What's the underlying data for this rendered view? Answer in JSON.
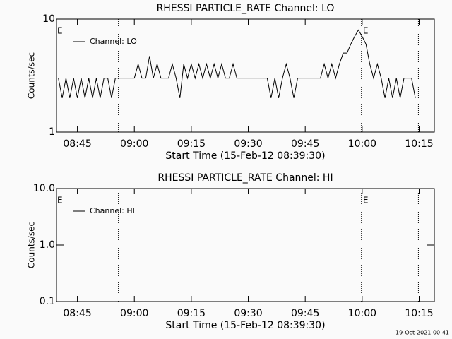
{
  "chart_data": [
    {
      "type": "line",
      "title": "RHESSI PARTICLE_RATE Channel: LO",
      "xlabel": "Start Time (15-Feb-12 08:39:30)",
      "ylabel": "Counts/sec",
      "log_y": true,
      "xlim": [
        519.5,
        619
      ],
      "ylim": [
        1,
        10
      ],
      "xticks": [
        {
          "value": 525,
          "label": "08:45"
        },
        {
          "value": 540,
          "label": "09:00"
        },
        {
          "value": 555,
          "label": "09:15"
        },
        {
          "value": 570,
          "label": "09:30"
        },
        {
          "value": 585,
          "label": "09:45"
        },
        {
          "value": 600,
          "label": "10:00"
        },
        {
          "value": 615,
          "label": "10:15"
        }
      ],
      "yticks": [
        1,
        10
      ],
      "vlines": [
        535.8,
        599.8,
        614.8
      ],
      "annotations": [
        {
          "text": "E",
          "x": 519.5
        },
        {
          "text": "E",
          "x": 600
        }
      ],
      "x": [
        520,
        521,
        522,
        523,
        524,
        525,
        526,
        527,
        528,
        529,
        530,
        531,
        532,
        533,
        534,
        535,
        536,
        537,
        538,
        539,
        540,
        541,
        542,
        543,
        544,
        545,
        546,
        547,
        548,
        549,
        550,
        551,
        552,
        553,
        554,
        555,
        556,
        557,
        558,
        559,
        560,
        561,
        562,
        563,
        564,
        565,
        566,
        567,
        568,
        569,
        570,
        571,
        572,
        573,
        574,
        575,
        576,
        577,
        578,
        579,
        580,
        581,
        582,
        583,
        584,
        585,
        586,
        587,
        588,
        589,
        590,
        591,
        592,
        593,
        594,
        595,
        596,
        597,
        598,
        599,
        600,
        601,
        602,
        603,
        604,
        605,
        606,
        607,
        608,
        609,
        610,
        611,
        612,
        613,
        614
      ],
      "series": [
        {
          "name": "Channel: LO",
          "color": "#000000",
          "values": [
            3,
            2,
            3,
            2,
            3,
            2,
            3,
            2,
            3,
            2,
            3,
            2,
            3,
            3,
            2,
            3,
            3,
            3,
            3,
            3,
            3,
            4,
            3,
            3,
            4.7,
            3,
            4,
            3,
            3,
            3,
            4,
            3,
            2,
            4,
            3,
            4,
            3,
            4,
            3,
            4,
            3,
            4,
            3,
            4,
            3,
            3,
            4,
            3,
            3,
            3,
            3,
            3,
            3,
            3,
            3,
            3,
            2,
            3,
            2,
            3,
            4,
            3,
            2,
            3,
            3,
            3,
            3,
            3,
            3,
            3,
            4,
            3,
            4,
            3,
            4,
            5,
            5,
            6,
            7,
            8,
            7,
            6,
            4,
            3,
            4,
            3,
            2,
            3,
            2,
            3,
            2,
            3,
            3,
            3,
            2
          ]
        }
      ]
    },
    {
      "type": "line",
      "title": "RHESSI PARTICLE_RATE Channel: HI",
      "xlabel": "Start Time (15-Feb-12 08:39:30)",
      "ylabel": "Counts/sec",
      "log_y": true,
      "xlim": [
        519.5,
        619
      ],
      "ylim": [
        0.1,
        10
      ],
      "xticks": [
        {
          "value": 525,
          "label": "08:45"
        },
        {
          "value": 540,
          "label": "09:00"
        },
        {
          "value": 555,
          "label": "09:15"
        },
        {
          "value": 570,
          "label": "09:30"
        },
        {
          "value": 585,
          "label": "09:45"
        },
        {
          "value": 600,
          "label": "10:00"
        },
        {
          "value": 615,
          "label": "10:15"
        }
      ],
      "yticks": [
        {
          "value": 0.1,
          "label": "0.1"
        },
        {
          "value": 1,
          "label": "1.0"
        },
        {
          "value": 10,
          "label": "10.0"
        }
      ],
      "vlines": [
        535.8,
        599.8,
        614.8
      ],
      "annotations": [
        {
          "text": "E",
          "x": 519.5
        },
        {
          "text": "E",
          "x": 600
        }
      ],
      "x": [],
      "series": [
        {
          "name": "Channel: HI",
          "color": "#000000",
          "values": []
        }
      ]
    }
  ],
  "footer": "19-Oct-2021 00:41"
}
